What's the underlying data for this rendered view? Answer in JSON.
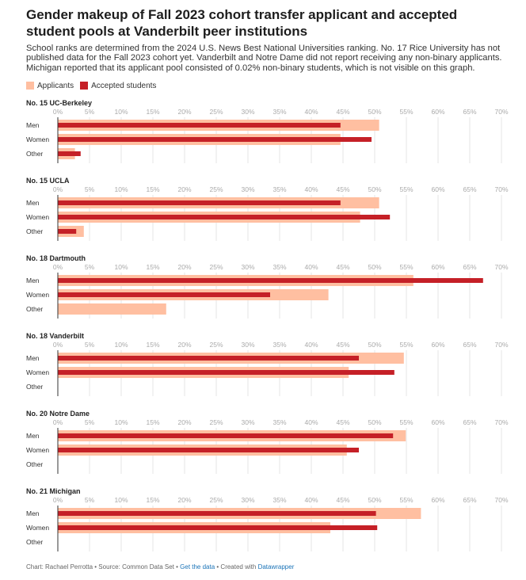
{
  "title": "Gender makeup of Fall 2023 cohort transfer applicant and accepted student pools at Vanderbilt peer institutions",
  "subtitle": "School ranks are determined from the 2024 U.S. News Best National Universities ranking. No. 17 Rice University has not published data for the Fall 2023 cohort yet. Vanderbilt and Notre Dame did not report receiving any non-binary applicants. Michigan reported that its applicant pool consisted of 0.02% non-binary students, which is not visible on this graph.",
  "colors": {
    "applicants": "#ffbfa1",
    "accepted": "#c52027",
    "grid": "#e5e5e5",
    "axis": "#333333",
    "tick": "#aaaaaa"
  },
  "legend": {
    "applicants_label": "Applicants",
    "accepted_label": "Accepted students"
  },
  "footer": {
    "credit": "Chart: Rachael Perrotta • Source: Common Data Set • ",
    "get_data": "Get the data",
    "sep": " • Created with ",
    "tool": "Datawrapper"
  },
  "chart_data": {
    "type": "bar",
    "orientation": "horizontal",
    "categories": [
      "Men",
      "Women",
      "Other"
    ],
    "xlim": [
      0,
      70
    ],
    "ticks": [
      "0%",
      "5%",
      "10%",
      "15%",
      "20%",
      "25%",
      "30%",
      "35%",
      "40%",
      "45%",
      "50%",
      "55%",
      "60%",
      "65%",
      "70%"
    ],
    "legend_position": "top-left",
    "panels": [
      {
        "title": "No. 15 UC-Berkeley",
        "applicants": [
          50.7,
          44.6,
          2.7
        ],
        "accepted": [
          44.6,
          49.5,
          3.6
        ]
      },
      {
        "title": "No. 15 UCLA",
        "applicants": [
          50.7,
          47.7,
          4.1
        ],
        "accepted": [
          44.6,
          52.4,
          2.9
        ]
      },
      {
        "title": "No. 18 Dartmouth",
        "applicants": [
          56.1,
          42.7,
          17.1
        ],
        "accepted": [
          67.1,
          33.5,
          0
        ]
      },
      {
        "title": "No. 18 Vanderbilt",
        "applicants": [
          54.6,
          45.9,
          0
        ],
        "accepted": [
          47.5,
          53.1,
          0
        ]
      },
      {
        "title": "No. 20 Notre Dame",
        "applicants": [
          54.9,
          45.6,
          0
        ],
        "accepted": [
          52.9,
          47.5,
          0
        ]
      },
      {
        "title": "No. 21 Michigan",
        "applicants": [
          57.3,
          43.0,
          0
        ],
        "accepted": [
          50.2,
          50.4,
          0
        ]
      }
    ]
  }
}
